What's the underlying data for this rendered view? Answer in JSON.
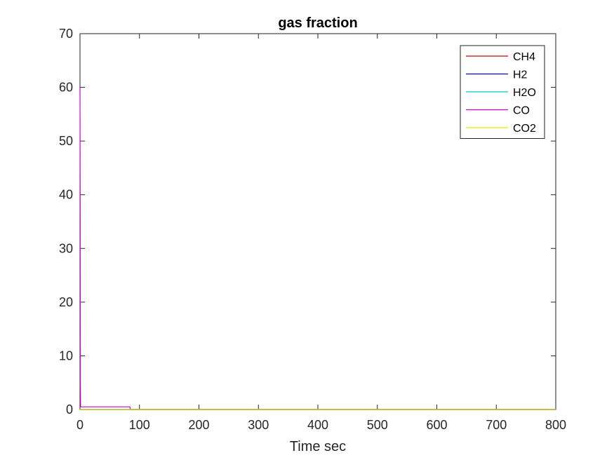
{
  "chart_data": {
    "type": "line",
    "title": "gas fraction",
    "xlabel": "Time sec",
    "ylabel": "",
    "xlim": [
      0,
      800
    ],
    "ylim": [
      0,
      70
    ],
    "xticks": [
      "0",
      "100",
      "200",
      "300",
      "400",
      "500",
      "600",
      "700",
      "800"
    ],
    "yticks": [
      "0",
      "10",
      "20",
      "30",
      "40",
      "50",
      "60",
      "70"
    ],
    "grid": false,
    "legend_position": "top-right",
    "series": [
      {
        "name": "CH4",
        "color": "#cc0000",
        "x": [
          0,
          800
        ],
        "y": [
          0,
          0
        ]
      },
      {
        "name": "H2",
        "color": "#0000cc",
        "x": [
          0,
          800
        ],
        "y": [
          0,
          0
        ]
      },
      {
        "name": "H2O",
        "color": "#00cccc",
        "x": [
          0,
          800
        ],
        "y": [
          0,
          0
        ]
      },
      {
        "name": "CO",
        "color": "#cc00cc",
        "x": [
          0,
          0.3,
          0.6,
          1,
          84,
          84.5,
          800
        ],
        "y": [
          60,
          40,
          5,
          0.5,
          0.5,
          0,
          0
        ]
      },
      {
        "name": "CO2",
        "color": "#e6e600",
        "x": [
          0,
          800
        ],
        "y": [
          0,
          0
        ]
      }
    ]
  }
}
